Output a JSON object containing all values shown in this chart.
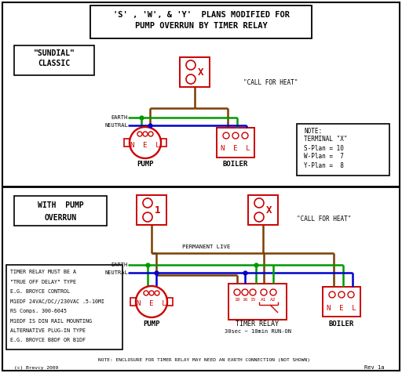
{
  "title_line1": "'S' , 'W', & 'Y'  PLANS MODIFIED FOR",
  "title_line2": "PUMP OVERRUN BY TIMER RELAY",
  "bg_color": "#ffffff",
  "red": "#cc0000",
  "green": "#009900",
  "blue": "#0000cc",
  "brown": "#7B3F00",
  "black": "#000000",
  "note_text": "NOTE:\nTERMINAL \"X\"\nS-Plan = 10\nW-Plan =  7\nY-Plan =  8",
  "timer_note": "NOTE: ENCLOSURE FOR TIMER RELAY MAY NEED AN EARTH CONNECTION (NOT SHOWN)",
  "timer_box_text": "TIMER RELAY MUST BE A\n\"TRUE OFF DELAY\" TYPE\nE.G. BROYCE CONTROL\nM1EDF 24VAC/DC//230VAC .5-10MI\nRS Comps. 300-6045\nM1EDF IS DIN RAIL MOUNTING\nALTERNATIVE PLUG-IN TYPE\nE.G. BROYCE B8DF OR B1DF",
  "sundial_label": "\"SUNDIAL\"\nCLASSIC",
  "with_pump_label": "WITH  PUMP\nOVERRUN",
  "pump_label": "PUMP",
  "boiler_label": "BOILER",
  "timer_relay_label": "TIMER RELAY\n30sec ~ 10min RUN-ON",
  "permanent_live": "PERMANENT LIVE",
  "call_for_heat_top": "\"CALL FOR HEAT\"",
  "call_for_heat_bot": "\"CALL FOR HEAT\"",
  "earth_label": "EARTH",
  "neutral_label": "NEUTRAL",
  "rev_label": "Rev 1a",
  "copyright": "(c) Brevcy 2009"
}
